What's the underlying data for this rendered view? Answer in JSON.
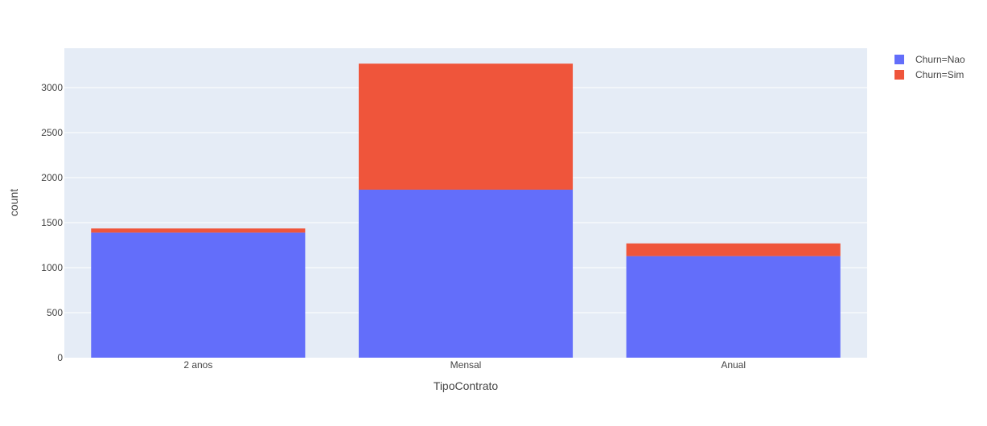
{
  "chart_data": {
    "type": "bar",
    "barmode": "stack",
    "categories": [
      "2 anos",
      "Mensal",
      "Anual"
    ],
    "series": [
      {
        "name": "Churn=Nao",
        "values": [
          1389,
          1866,
          1128
        ],
        "color": "#636efa"
      },
      {
        "name": "Churn=Sim",
        "values": [
          46,
          1400,
          141
        ],
        "color": "#ef553b"
      }
    ],
    "xlabel": "TipoContrato",
    "ylabel": "count",
    "ylim": [
      0,
      3437
    ],
    "yticks": [
      0,
      500,
      1000,
      1500,
      2000,
      2500,
      3000
    ],
    "grid": true,
    "legend_position": "top-right",
    "plot_background": "#e5ecf6",
    "gridline_color": "#ffffff"
  }
}
